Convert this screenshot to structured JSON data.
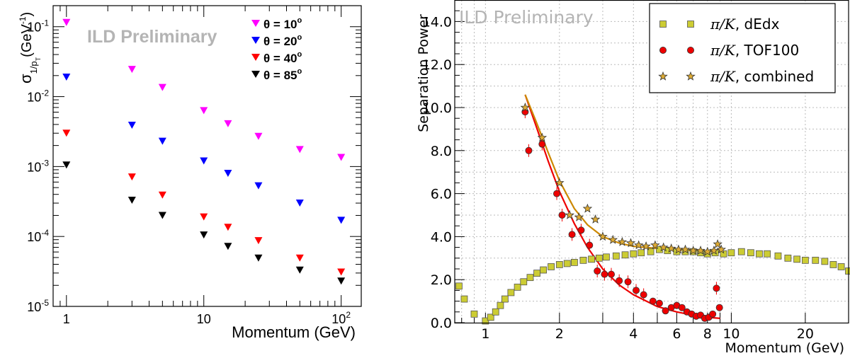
{
  "chart_data": [
    {
      "type": "scatter",
      "x_scale": "log",
      "y_scale": "log",
      "xlim": [
        0.8,
        140
      ],
      "ylim": [
        1e-05,
        0.2
      ],
      "xlabel": "Momentum (GeV)",
      "ylabel_main": "σ",
      "ylabel_sub": "1/p",
      "ylabel_subsub": "T",
      "ylabel_unit": "(GeV",
      "ylabel_unit_exp": "-1",
      "ylabel_unit_close": ")",
      "watermark": "ILD Preliminary",
      "x_ticks": [
        {
          "value": 1,
          "label": "1"
        },
        {
          "value": 10,
          "label": "10"
        },
        {
          "value": 100,
          "label": "10",
          "sup": "2"
        }
      ],
      "y_ticks": [
        {
          "value": 0.1,
          "base": "10",
          "sup": "-1"
        },
        {
          "value": 0.01,
          "base": "10",
          "sup": "-2"
        },
        {
          "value": 0.001,
          "base": "10",
          "sup": "-3"
        },
        {
          "value": 0.0001,
          "base": "10",
          "sup": "-4"
        },
        {
          "value": 1e-05,
          "base": "10",
          "sup": "-5"
        }
      ],
      "x": [
        1,
        3,
        5,
        10,
        15,
        25,
        50,
        100
      ],
      "series": [
        {
          "name": "θ = 10°",
          "label_prefix": "θ = ",
          "label_value": "10",
          "label_unit": "o",
          "color": "#ff00ff",
          "values": [
            0.115,
            0.0245,
            0.0135,
            0.0063,
            0.0041,
            0.0027,
            0.00175,
            0.00135
          ]
        },
        {
          "name": "θ = 20°",
          "label_prefix": "θ = ",
          "label_value": "20",
          "label_unit": "o",
          "color": "#0000ff",
          "values": [
            0.019,
            0.0039,
            0.0023,
            0.0012,
            0.0008,
            0.00053,
            0.0003,
            0.00017
          ]
        },
        {
          "name": "θ = 40°",
          "label_prefix": "θ = ",
          "label_value": "40",
          "label_unit": "o",
          "color": "#ff0000",
          "values": [
            0.003,
            0.00071,
            0.00039,
            0.00019,
            0.000135,
            8.7e-05,
            4.9e-05,
            3.1e-05
          ]
        },
        {
          "name": "θ = 85°",
          "label_prefix": "θ = ",
          "label_value": "85",
          "label_unit": "o",
          "color": "#000000",
          "values": [
            0.00105,
            0.00033,
            0.0002,
            0.000105,
            7.2e-05,
            4.9e-05,
            3.3e-05,
            2.3e-05
          ]
        }
      ]
    },
    {
      "type": "scatter",
      "x_scale": "log",
      "y_scale": "linear",
      "xlim": [
        0.75,
        30
      ],
      "ylim": [
        0,
        15
      ],
      "xlabel": "Momentum (GeV)",
      "ylabel": "Separation Power",
      "watermark": "ILD Preliminary",
      "grid": true,
      "x_ticks": [
        {
          "value": 1,
          "label": "1"
        },
        {
          "value": 2,
          "label": "2"
        },
        {
          "value": 4,
          "label": "4"
        },
        {
          "value": 6,
          "label": "6"
        },
        {
          "value": 8,
          "label": "8"
        },
        {
          "value": 10,
          "label": "10"
        },
        {
          "value": 20,
          "label": "20"
        }
      ],
      "y_ticks": [
        {
          "value": 0,
          "label": "0.0"
        },
        {
          "value": 2,
          "label": "2.0"
        },
        {
          "value": 4,
          "label": "4.0"
        },
        {
          "value": 6,
          "label": "6.0"
        },
        {
          "value": 8,
          "label": "8.0"
        },
        {
          "value": 10,
          "label": "10.0"
        },
        {
          "value": 12,
          "label": "12.0"
        },
        {
          "value": 14,
          "label": "14.0"
        }
      ],
      "legend_placement": "top-right",
      "series": [
        {
          "name": "π/K, dEdx",
          "legend_math": "π/K",
          "legend_text": ", dEdx",
          "marker": "square",
          "color": "#cccc33",
          "points": [
            [
              0.78,
              1.7
            ],
            [
              0.82,
              1.1
            ],
            [
              0.9,
              0.4
            ],
            [
              1.0,
              0.08
            ],
            [
              1.05,
              0.25
            ],
            [
              1.1,
              0.5
            ],
            [
              1.15,
              0.8
            ],
            [
              1.2,
              1.1
            ],
            [
              1.27,
              1.4
            ],
            [
              1.35,
              1.65
            ],
            [
              1.43,
              1.9
            ],
            [
              1.52,
              2.1
            ],
            [
              1.62,
              2.3
            ],
            [
              1.72,
              2.45
            ],
            [
              1.85,
              2.6
            ],
            [
              2.0,
              2.7
            ],
            [
              2.15,
              2.75
            ],
            [
              2.3,
              2.8
            ],
            [
              2.5,
              2.9
            ],
            [
              2.7,
              2.95
            ],
            [
              2.9,
              3.0
            ],
            [
              3.1,
              3.05
            ],
            [
              3.4,
              3.1
            ],
            [
              3.7,
              3.15
            ],
            [
              4.0,
              3.2
            ],
            [
              4.3,
              3.25
            ],
            [
              4.7,
              3.3
            ],
            [
              5.1,
              3.4
            ],
            [
              5.5,
              3.35
            ],
            [
              6.0,
              3.3
            ],
            [
              6.5,
              3.3
            ],
            [
              7.0,
              3.3
            ],
            [
              7.5,
              3.25
            ],
            [
              8.0,
              3.2
            ],
            [
              8.6,
              3.25
            ],
            [
              9.3,
              3.2
            ],
            [
              10.0,
              3.25
            ],
            [
              11.0,
              3.3
            ],
            [
              12.0,
              3.25
            ],
            [
              13.0,
              3.2
            ],
            [
              14.0,
              3.2
            ],
            [
              15.5,
              3.1
            ],
            [
              17.0,
              3.0
            ],
            [
              18.5,
              2.95
            ],
            [
              20.0,
              2.9
            ],
            [
              22.0,
              2.9
            ],
            [
              24.0,
              2.85
            ],
            [
              26.0,
              2.7
            ],
            [
              28.0,
              2.6
            ],
            [
              30.0,
              2.4
            ]
          ]
        },
        {
          "name": "π/K, TOF100",
          "legend_math": "π/K",
          "legend_text": ", TOF100",
          "marker": "circle",
          "color": "#ee0000",
          "points": [
            [
              1.45,
              9.8
            ],
            [
              1.5,
              8.0
            ],
            [
              1.7,
              8.3
            ],
            [
              1.95,
              6.0
            ],
            [
              2.05,
              5.0
            ],
            [
              2.25,
              4.1
            ],
            [
              2.45,
              4.3
            ],
            [
              2.65,
              3.6
            ],
            [
              2.85,
              2.4
            ],
            [
              3.05,
              2.25
            ],
            [
              3.25,
              2.25
            ],
            [
              3.5,
              1.95
            ],
            [
              3.8,
              1.9
            ],
            [
              4.1,
              1.5
            ],
            [
              4.4,
              1.3
            ],
            [
              4.8,
              1.0
            ],
            [
              5.1,
              0.9
            ],
            [
              5.4,
              0.55
            ],
            [
              5.7,
              0.7
            ],
            [
              6.0,
              0.8
            ],
            [
              6.3,
              0.7
            ],
            [
              6.6,
              0.5
            ],
            [
              6.9,
              0.4
            ],
            [
              7.2,
              0.3
            ],
            [
              7.5,
              0.35
            ],
            [
              7.8,
              0.2
            ],
            [
              8.1,
              0.25
            ],
            [
              8.4,
              0.4
            ],
            [
              8.7,
              1.6
            ],
            [
              8.95,
              0.7
            ]
          ]
        },
        {
          "name": "π/K, combined",
          "legend_math": "π/K",
          "legend_text": ", combined",
          "marker": "star",
          "color": "#ddaa33",
          "points": [
            [
              1.45,
              10.0
            ],
            [
              1.7,
              8.6
            ],
            [
              2.0,
              6.5
            ],
            [
              2.2,
              5.0
            ],
            [
              2.4,
              4.9
            ],
            [
              2.6,
              5.3
            ],
            [
              2.8,
              4.8
            ],
            [
              3.0,
              4.0
            ],
            [
              3.3,
              3.85
            ],
            [
              3.6,
              3.75
            ],
            [
              3.9,
              3.7
            ],
            [
              4.2,
              3.6
            ],
            [
              4.5,
              3.55
            ],
            [
              4.9,
              3.6
            ],
            [
              5.3,
              3.5
            ],
            [
              5.7,
              3.45
            ],
            [
              6.1,
              3.4
            ],
            [
              6.5,
              3.4
            ],
            [
              7.0,
              3.35
            ],
            [
              7.5,
              3.35
            ],
            [
              8.0,
              3.3
            ],
            [
              8.5,
              3.35
            ],
            [
              8.8,
              3.65
            ],
            [
              9.1,
              3.4
            ]
          ]
        }
      ],
      "fits": [
        {
          "series": "π/K, TOF100",
          "color": "#ee0000",
          "points": [
            [
              1.45,
              10.6
            ],
            [
              1.6,
              9.2
            ],
            [
              1.8,
              7.5
            ],
            [
              2.0,
              6.1
            ],
            [
              2.3,
              4.6
            ],
            [
              2.6,
              3.5
            ],
            [
              3.0,
              2.5
            ],
            [
              3.5,
              1.75
            ],
            [
              4.0,
              1.3
            ],
            [
              5.0,
              0.75
            ],
            [
              6.0,
              0.5
            ],
            [
              7.0,
              0.35
            ],
            [
              8.0,
              0.25
            ],
            [
              9.0,
              0.2
            ]
          ]
        },
        {
          "series": "π/K, combined",
          "color": "#cc8800",
          "points": [
            [
              1.45,
              10.6
            ],
            [
              1.6,
              9.4
            ],
            [
              1.8,
              7.9
            ],
            [
              2.0,
              6.6
            ],
            [
              2.3,
              5.3
            ],
            [
              2.6,
              4.55
            ],
            [
              3.0,
              4.0
            ],
            [
              3.5,
              3.7
            ],
            [
              4.0,
              3.55
            ],
            [
              5.0,
              3.45
            ],
            [
              6.0,
              3.38
            ],
            [
              7.0,
              3.35
            ],
            [
              8.0,
              3.32
            ],
            [
              9.0,
              3.32
            ]
          ]
        }
      ]
    }
  ]
}
